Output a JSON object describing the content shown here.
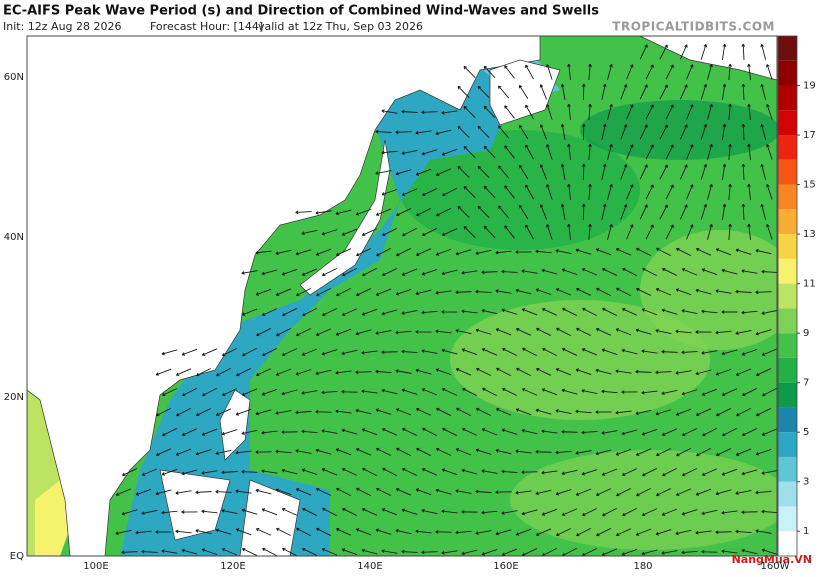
{
  "header": {
    "title": "EC-AIFS Peak Wave Period (s) and Direction of Combined Wind-Waves and Swells",
    "init": "Init: 12z Aug 28 2026",
    "forecast_hour": "Forecast Hour: [144]",
    "valid": "valid at 12z Thu, Sep 03 2026",
    "brand": "TROPICALTIDBITS.COM"
  },
  "map": {
    "lat_labels": [
      "60N",
      "40N",
      "20N",
      "EQ"
    ],
    "lon_labels": [
      "100E",
      "120E",
      "140E",
      "160E",
      "180",
      "160W"
    ]
  },
  "colorbar": {
    "range": [
      0,
      21
    ],
    "ticks": [
      1,
      3,
      5,
      7,
      9,
      11,
      13,
      15,
      17,
      19
    ],
    "colors": [
      "#ffffff",
      "#c8f2f8",
      "#9ee0ea",
      "#5ec6d6",
      "#2ea8c2",
      "#1a86ae",
      "#0f9a4a",
      "#23b046",
      "#43c24a",
      "#7fd254",
      "#bde362",
      "#f7f26e",
      "#f8d444",
      "#f8ac32",
      "#f88422",
      "#f65414",
      "#ee2410",
      "#d00404",
      "#b00000",
      "#8e0000",
      "#6e0e0e"
    ]
  },
  "watermark": "NangMua.VN"
}
